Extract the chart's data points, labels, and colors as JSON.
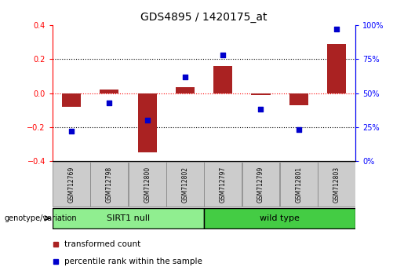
{
  "title": "GDS4895 / 1420175_at",
  "samples": [
    "GSM712769",
    "GSM712798",
    "GSM712800",
    "GSM712802",
    "GSM712797",
    "GSM712799",
    "GSM712801",
    "GSM712803"
  ],
  "groups": [
    "SIRT1 null",
    "SIRT1 null",
    "SIRT1 null",
    "SIRT1 null",
    "wild type",
    "wild type",
    "wild type",
    "wild type"
  ],
  "group_labels": [
    "SIRT1 null",
    "wild type"
  ],
  "bar_values": [
    -0.08,
    0.02,
    -0.35,
    0.035,
    0.16,
    -0.01,
    -0.07,
    0.29
  ],
  "scatter_values": [
    22,
    43,
    30,
    62,
    78,
    38,
    23,
    97
  ],
  "bar_color": "#AA2222",
  "scatter_color": "#0000CC",
  "ylim_left": [
    -0.4,
    0.4
  ],
  "ylim_right": [
    0,
    100
  ],
  "yticks_left": [
    -0.4,
    -0.2,
    0.0,
    0.2,
    0.4
  ],
  "yticks_right": [
    0,
    25,
    50,
    75,
    100
  ],
  "hlines": [
    0.2,
    0.0,
    -0.2
  ],
  "hline_colors": [
    "black",
    "red",
    "black"
  ],
  "genotype_label": "genotype/variation",
  "legend_bar": "transformed count",
  "legend_scatter": "percentile rank within the sample",
  "bar_width": 0.5,
  "green_light": "#90EE90",
  "green_dark": "#44CC44",
  "group_boundary": 4
}
